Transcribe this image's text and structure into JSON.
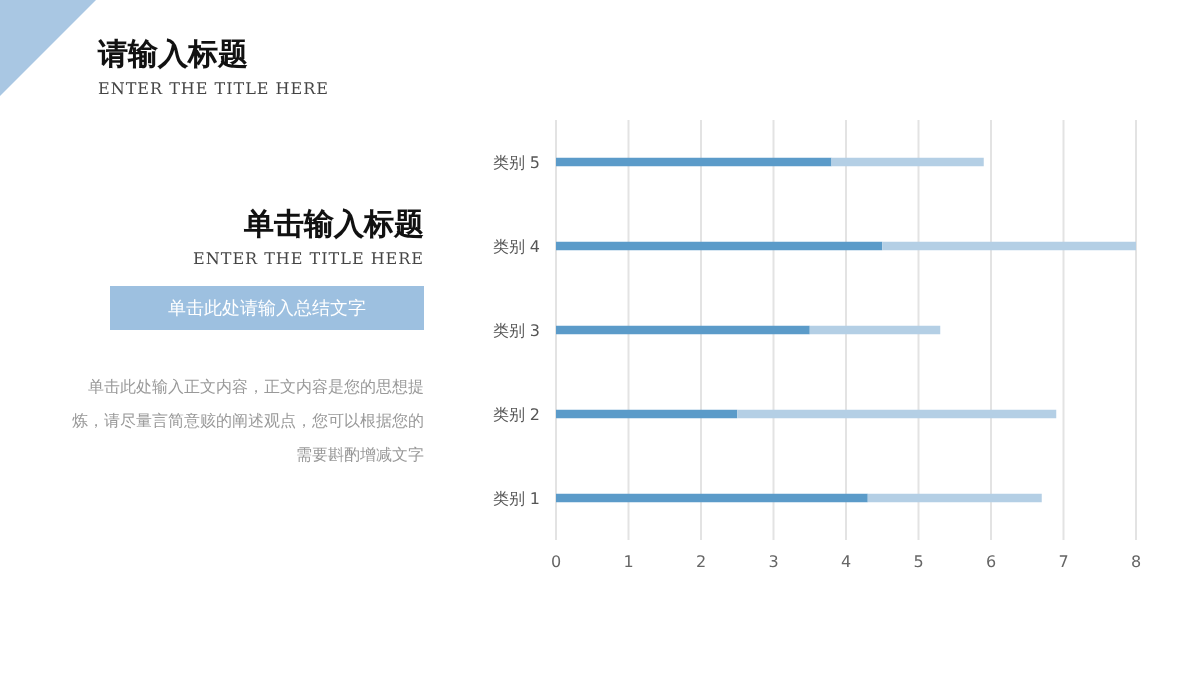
{
  "chart_data": {
    "type": "bar",
    "orientation": "horizontal",
    "stacked": true,
    "title": "请输入标题",
    "subtitle": "ENTER THE TITLE HERE",
    "categories": [
      "类别 5",
      "类别 4",
      "类别 3",
      "类别 2",
      "类别 1"
    ],
    "series": [
      {
        "color": "#5b9bc9",
        "values": [
          3.8,
          4.5,
          3.5,
          2.5,
          4.3
        ]
      },
      {
        "color": "#b4cfe5",
        "values": [
          2.1,
          3.5,
          1.8,
          4.4,
          2.4
        ]
      }
    ],
    "xlim": [
      0,
      8
    ],
    "xticks": [
      0,
      1,
      2,
      3,
      4,
      5,
      6,
      7,
      8
    ],
    "grid": "x",
    "legend": false,
    "annotations": [
      "单击输入标题",
      "ENTER THE TITLE HERE",
      "单击此处请输入总结文字",
      "单击此处输入正文内容，正文内容是您的思想提炼，请尽量言简意赅的阐述观点，您可以根据您的需要斟酌增减文字"
    ]
  }
}
